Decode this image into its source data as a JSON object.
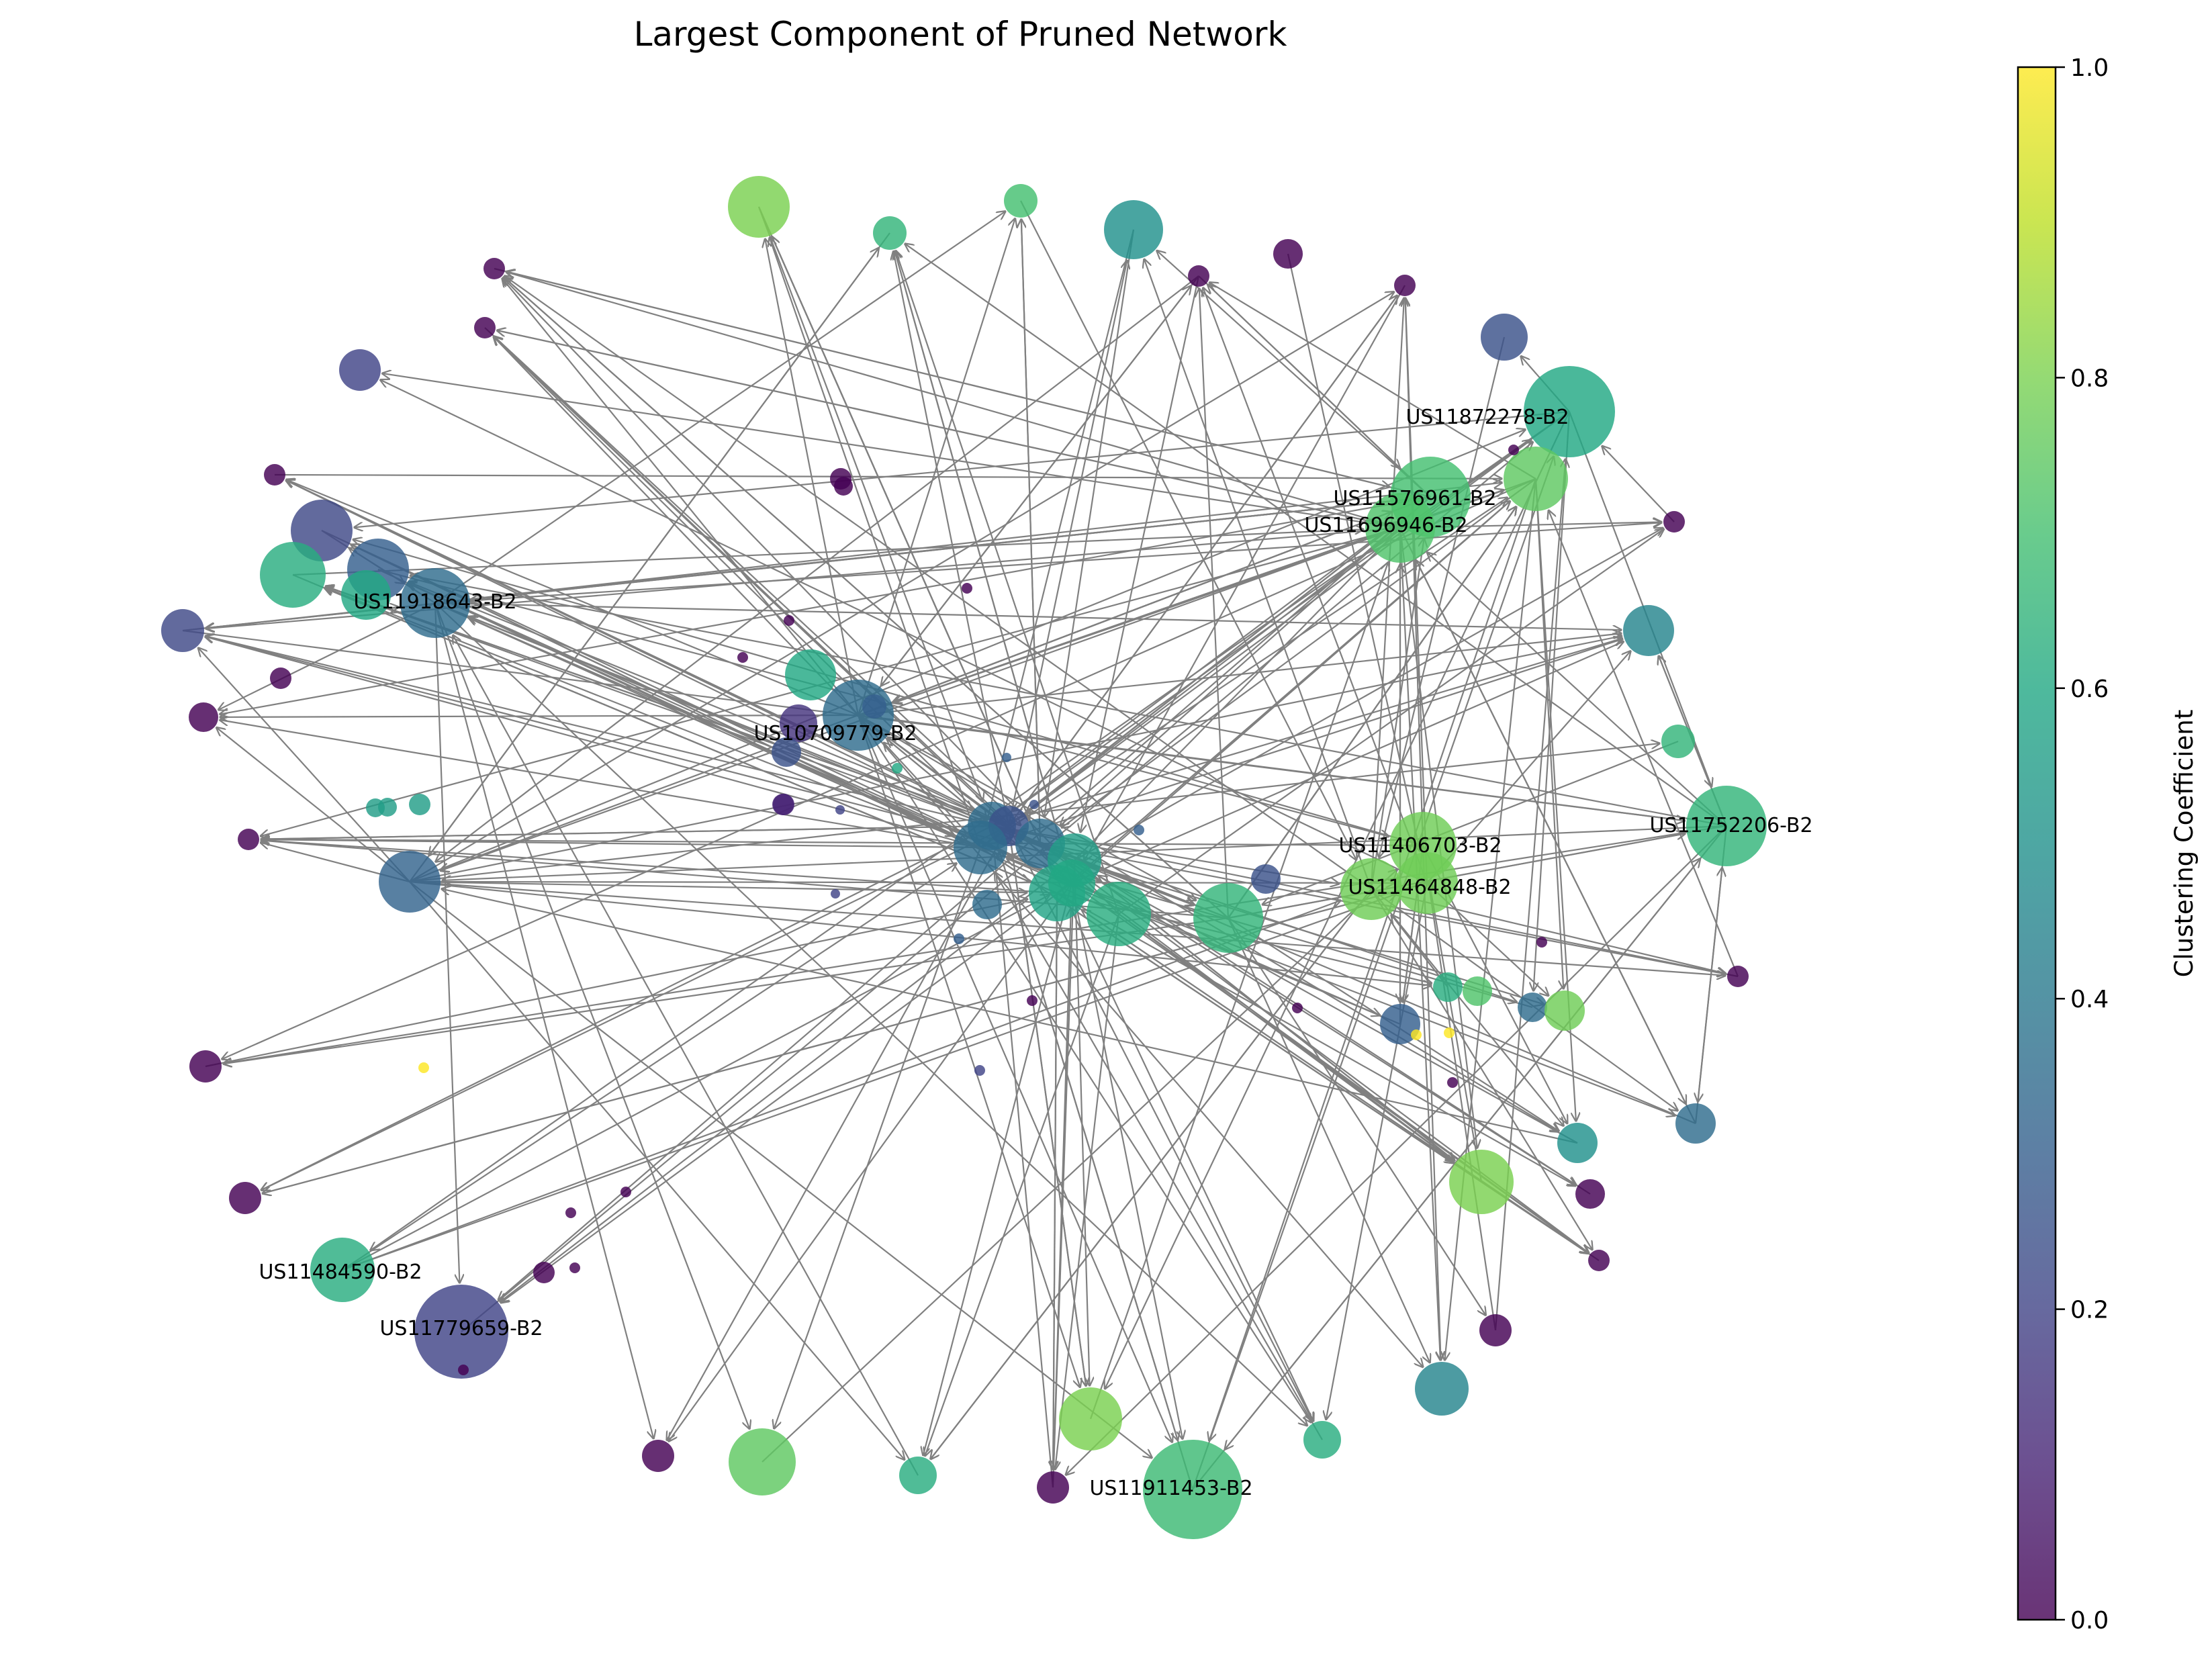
{
  "title": "Largest Component of Pruned Network",
  "colorbar": {
    "label": "Clustering Coefficient",
    "min": 0.0,
    "max": 1.0,
    "ticks": [
      "0.0",
      "0.2",
      "0.4",
      "0.6",
      "0.8",
      "1.0"
    ],
    "colormap": "viridis",
    "alpha": 0.8
  },
  "colors": {
    "edge": "#808080",
    "background": "#ffffff",
    "text": "#000000"
  },
  "node_labels": [
    "US11872278-B2",
    "US11576961-B2",
    "US11696946-B2",
    "US11918643-B2",
    "US10709779-B2",
    "US11752206-B2",
    "US11406703-B2",
    "US11464848-B2",
    "US11484590-B2",
    "US11779659-B2",
    "US11911453-B2"
  ]
}
